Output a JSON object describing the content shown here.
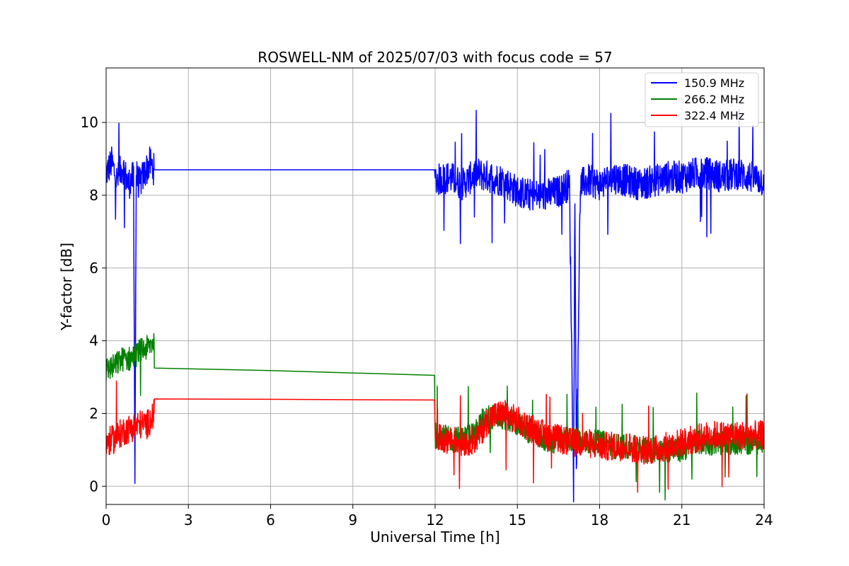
{
  "chart_data": {
    "type": "line",
    "title": "ROSWELL-NM of 2025/07/03 with focus code = 57",
    "xlabel": "Universal Time [h]",
    "ylabel": "Y-factor [dB]",
    "xlim": [
      0,
      24
    ],
    "ylim": [
      -0.5,
      11.5
    ],
    "xticks": [
      0,
      3,
      6,
      9,
      12,
      15,
      18,
      21,
      24
    ],
    "yticks": [
      0,
      2,
      4,
      6,
      8,
      10
    ],
    "grid": true,
    "legend_position": "top-right",
    "series": [
      {
        "name": " 150.9 MHz",
        "color": "#0000ff",
        "x": [
          0,
          0.2,
          0.4,
          0.6,
          0.8,
          1.0,
          1.05,
          1.1,
          1.2,
          1.4,
          1.6,
          1.75,
          2.0,
          6.0,
          11.98,
          12.0,
          12.5,
          13.0,
          13.5,
          14.0,
          14.5,
          15.0,
          15.5,
          16.0,
          16.5,
          16.9,
          17.05,
          17.1,
          17.15,
          17.3,
          17.6,
          18.0,
          18.5,
          19.0,
          19.5,
          20.0,
          20.5,
          21.0,
          21.5,
          22.0,
          22.5,
          23.0,
          23.5,
          24.0
        ],
        "y": [
          8.6,
          8.9,
          8.4,
          8.8,
          8.3,
          8.5,
          0.5,
          8.6,
          8.3,
          8.6,
          8.9,
          8.7,
          8.7,
          8.7,
          8.7,
          8.4,
          8.5,
          8.3,
          8.6,
          8.5,
          8.4,
          8.1,
          8.0,
          8.0,
          8.1,
          8.3,
          0.0,
          8.2,
          0.5,
          8.3,
          8.4,
          8.3,
          8.5,
          8.4,
          8.3,
          8.4,
          8.5,
          8.5,
          8.6,
          8.6,
          8.5,
          8.6,
          8.5,
          8.4
        ],
        "noise": 0.45
      },
      {
        "name": " 266.2 MHz",
        "color": "#008000",
        "x": [
          0,
          0.3,
          0.6,
          0.9,
          1.2,
          1.5,
          1.75,
          1.76,
          6.0,
          11.98,
          12.0,
          12.5,
          13.0,
          13.5,
          13.8,
          14.0,
          14.5,
          15.0,
          15.5,
          16.0,
          16.5,
          17.0,
          17.5,
          18.0,
          18.5,
          19.0,
          19.5,
          20.0,
          20.5,
          21.0,
          21.5,
          22.0,
          22.5,
          23.0,
          23.5,
          24.0
        ],
        "y": [
          3.2,
          3.3,
          3.5,
          3.5,
          3.7,
          3.8,
          4.0,
          3.25,
          3.18,
          3.05,
          1.4,
          1.3,
          1.3,
          1.5,
          1.9,
          1.9,
          1.9,
          1.7,
          1.5,
          1.3,
          1.2,
          1.3,
          1.2,
          1.2,
          1.1,
          1.1,
          1.0,
          1.0,
          1.0,
          1.0,
          1.2,
          1.2,
          1.2,
          1.2,
          1.2,
          1.2
        ],
        "noise": 0.35
      },
      {
        "name": "322.4 MHz",
        "color": "#ff0000",
        "x": [
          0,
          0.3,
          0.6,
          0.9,
          1.2,
          1.5,
          1.75,
          1.76,
          6.0,
          11.98,
          12.0,
          12.5,
          13.0,
          13.5,
          14.0,
          14.5,
          15.0,
          15.5,
          16.0,
          16.5,
          17.0,
          17.5,
          18.0,
          18.5,
          19.0,
          19.5,
          20.0,
          20.5,
          21.0,
          21.5,
          22.0,
          22.5,
          23.0,
          23.5,
          24.0
        ],
        "y": [
          1.2,
          1.3,
          1.5,
          1.6,
          1.7,
          1.7,
          2.0,
          2.4,
          2.39,
          2.37,
          1.3,
          1.3,
          1.2,
          1.3,
          1.9,
          2.0,
          1.8,
          1.6,
          1.4,
          1.3,
          1.2,
          1.2,
          1.1,
          1.1,
          1.1,
          1.0,
          1.0,
          1.1,
          1.2,
          1.3,
          1.4,
          1.4,
          1.4,
          1.4,
          1.4
        ],
        "noise": 0.4
      }
    ]
  }
}
